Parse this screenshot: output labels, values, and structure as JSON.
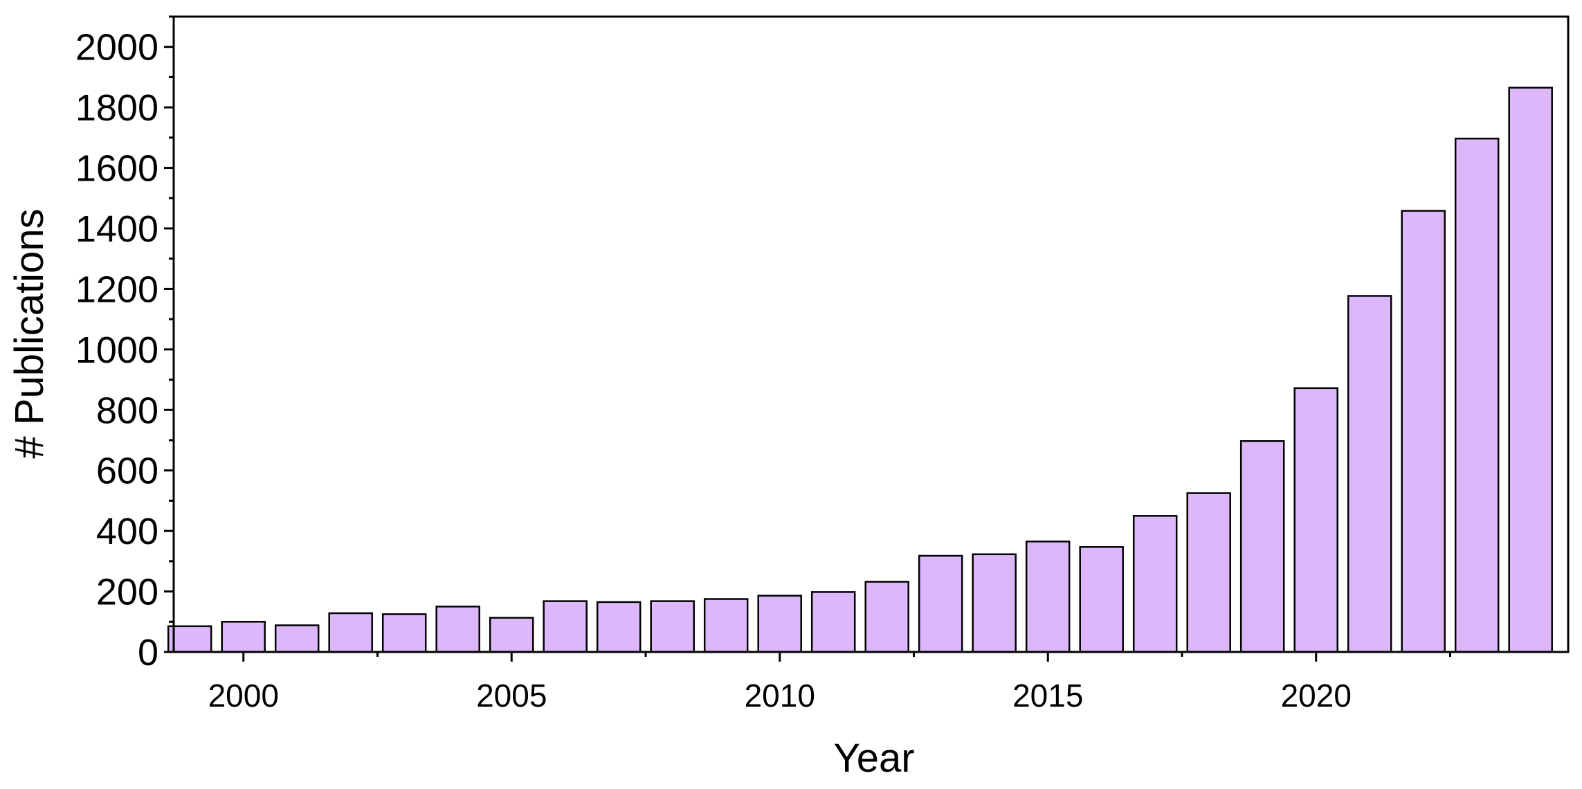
{
  "chart_data": {
    "type": "bar",
    "title": "",
    "xlabel": "Year",
    "ylabel": "# Publications",
    "categories": [
      "1999",
      "2000",
      "2001",
      "2002",
      "2003",
      "2004",
      "2005",
      "2006",
      "2007",
      "2008",
      "2009",
      "2010",
      "2011",
      "2012",
      "2013",
      "2014",
      "2015",
      "2016",
      "2017",
      "2018",
      "2019",
      "2020",
      "2021",
      "2022",
      "2023",
      "2024"
    ],
    "values": [
      85,
      100,
      88,
      128,
      125,
      150,
      113,
      168,
      165,
      168,
      175,
      186,
      198,
      232,
      318,
      323,
      365,
      347,
      450,
      525,
      697,
      872,
      1177,
      1458,
      1697,
      1865
    ],
    "xlim": [
      1998.7,
      2024.7
    ],
    "ylim": [
      0,
      2100
    ],
    "xticks": [
      "2000",
      "2005",
      "2010",
      "2015",
      "2020"
    ],
    "yticks": [
      "0",
      "200",
      "400",
      "600",
      "800",
      "1000",
      "1200",
      "1400",
      "1600",
      "1800",
      "2000"
    ],
    "bar_color": "#dcb8fb",
    "bar_edge_color": "#000000",
    "grid": false,
    "legend": "none"
  }
}
